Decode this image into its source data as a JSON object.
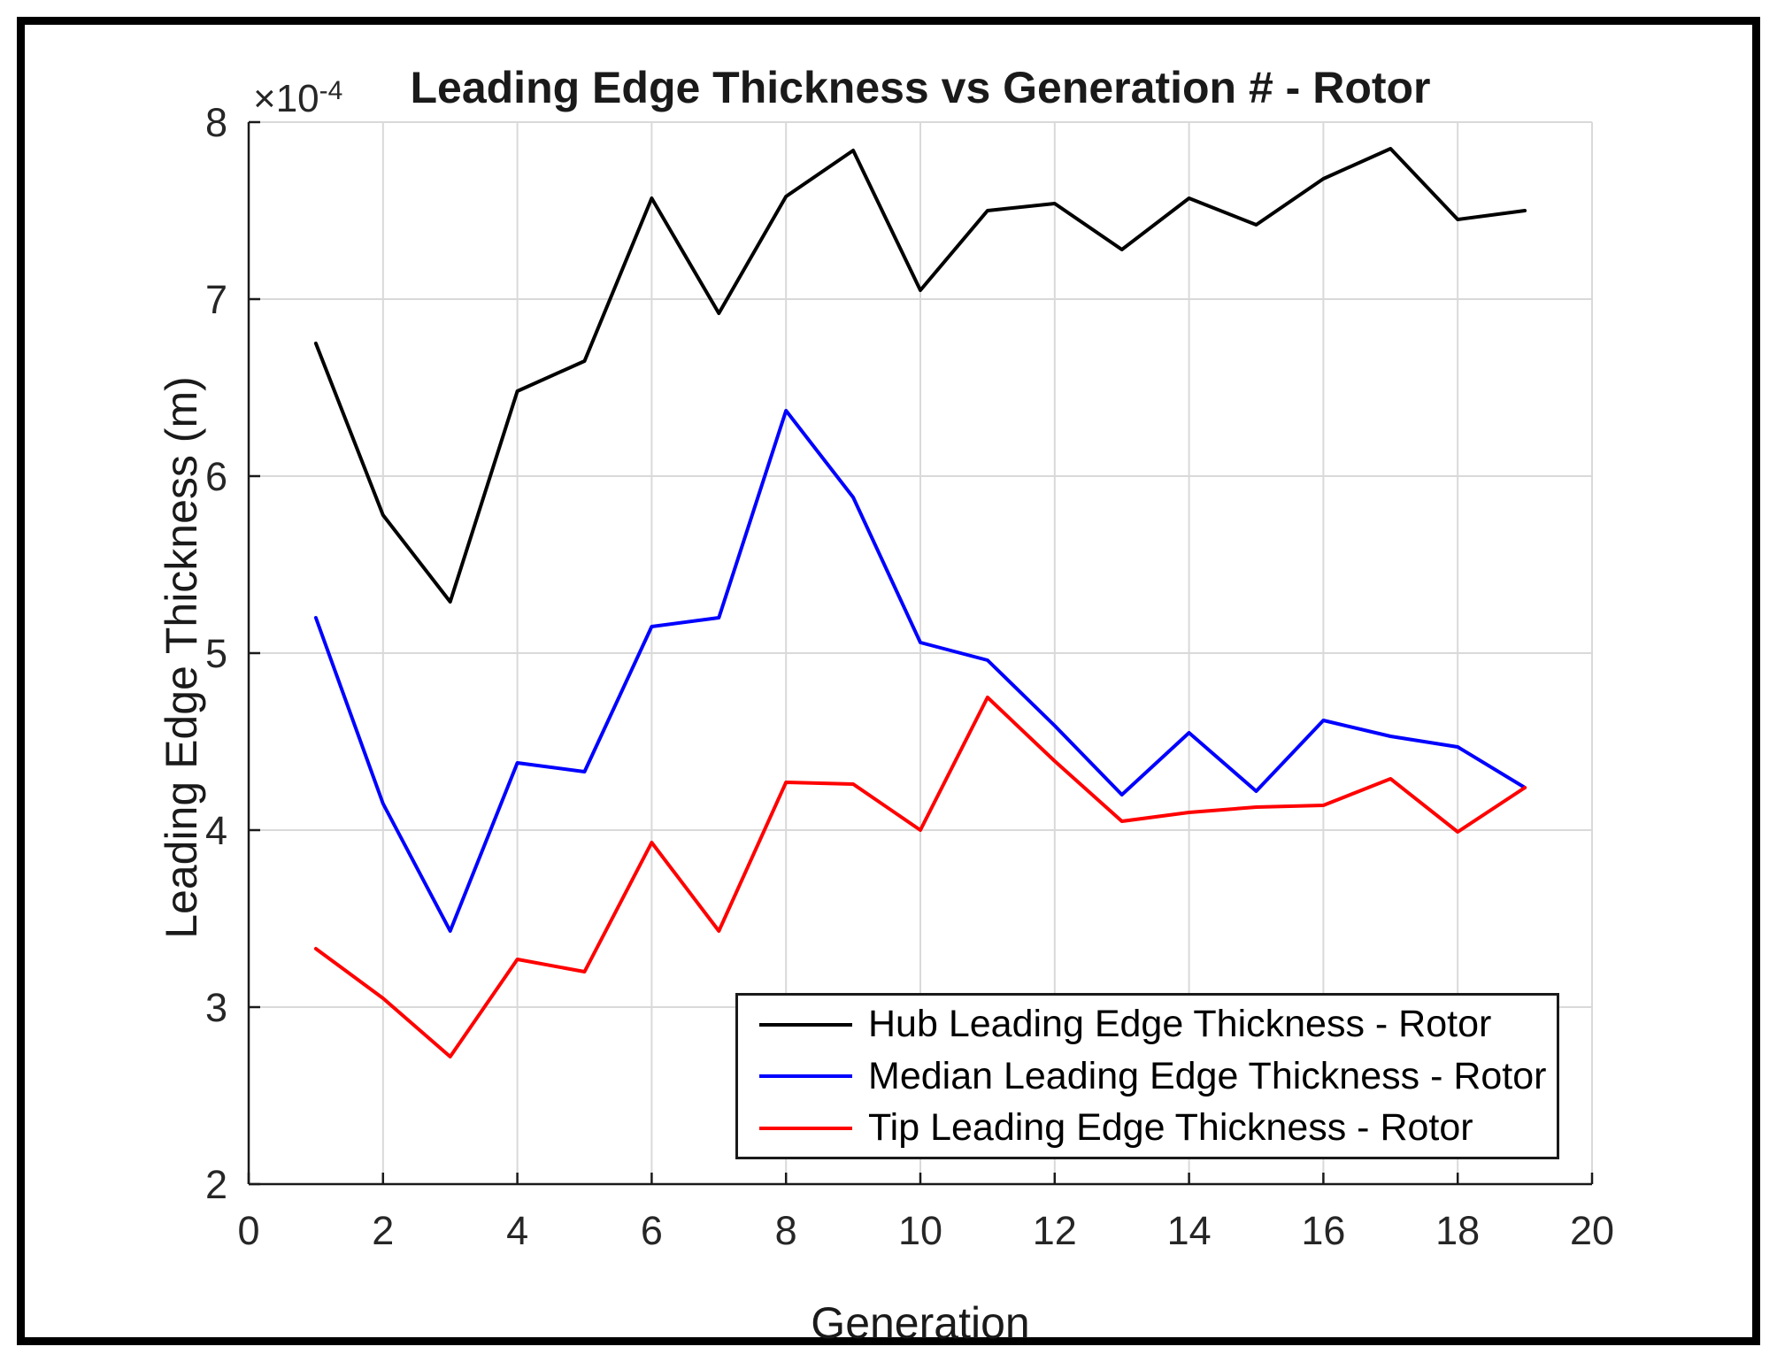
{
  "figure": {
    "title": "Leading Edge Thickness vs Generation # - Rotor",
    "y_axis_label": "Leading Edge Thickness (m)",
    "x_axis_label": "Generation",
    "y_multiplier_base": "×10",
    "y_multiplier_exponent": "-4"
  },
  "colors": {
    "hub": "#000000",
    "median": "#0000ff",
    "tip": "#ff0000",
    "grid": "#d9d9d9",
    "axis": "#1a1a1a",
    "tick_text": "#262626",
    "background": "#ffffff",
    "frame_border": "#000000"
  },
  "legend": {
    "entries": [
      {
        "id": "hub",
        "label": "Hub Leading Edge Thickness - Rotor",
        "color": "#000000"
      },
      {
        "id": "median",
        "label": "Median Leading Edge Thickness - Rotor",
        "color": "#0000ff"
      },
      {
        "id": "tip",
        "label": "Tip Leading Edge Thickness - Rotor",
        "color": "#ff0000"
      }
    ]
  },
  "chart_data": {
    "type": "line",
    "title": "Leading Edge Thickness vs Generation # - Rotor",
    "xlabel": "Generation",
    "ylabel": "Leading Edge Thickness (m)",
    "y_unit_scale": "1e-4",
    "xlim": [
      0,
      20
    ],
    "ylim": [
      2,
      8
    ],
    "x_ticks": [
      0,
      2,
      4,
      6,
      8,
      10,
      12,
      14,
      16,
      18,
      20
    ],
    "y_ticks": [
      2,
      3,
      4,
      5,
      6,
      7,
      8
    ],
    "x_tick_labels": [
      "0",
      "2",
      "4",
      "6",
      "8",
      "10",
      "12",
      "14",
      "16",
      "18",
      "20"
    ],
    "y_tick_labels": [
      "2",
      "3",
      "4",
      "5",
      "6",
      "7",
      "8"
    ],
    "grid": true,
    "legend_position": "south-east",
    "x": [
      1,
      2,
      3,
      4,
      5,
      6,
      7,
      8,
      9,
      10,
      11,
      12,
      13,
      14,
      15,
      16,
      17,
      18,
      19
    ],
    "series": [
      {
        "name": "Hub Leading Edge Thickness - Rotor",
        "color": "#000000",
        "values": [
          6.75,
          5.78,
          5.29,
          6.48,
          6.65,
          7.57,
          6.92,
          7.58,
          7.84,
          7.05,
          7.5,
          7.54,
          7.28,
          7.57,
          7.42,
          7.68,
          7.85,
          7.45,
          7.5
        ]
      },
      {
        "name": "Median Leading Edge Thickness - Rotor",
        "color": "#0000ff",
        "values": [
          5.2,
          4.15,
          3.43,
          4.38,
          4.33,
          5.15,
          5.2,
          6.37,
          5.88,
          5.06,
          4.96,
          4.59,
          4.2,
          4.55,
          4.22,
          4.62,
          4.53,
          4.47,
          4.24
        ]
      },
      {
        "name": "Tip Leading Edge Thickness - Rotor",
        "color": "#ff0000",
        "values": [
          3.33,
          3.05,
          2.72,
          3.27,
          3.2,
          3.93,
          3.43,
          4.27,
          4.26,
          4.0,
          4.75,
          4.39,
          4.05,
          4.1,
          4.13,
          4.14,
          4.29,
          3.99,
          4.24
        ]
      }
    ]
  }
}
